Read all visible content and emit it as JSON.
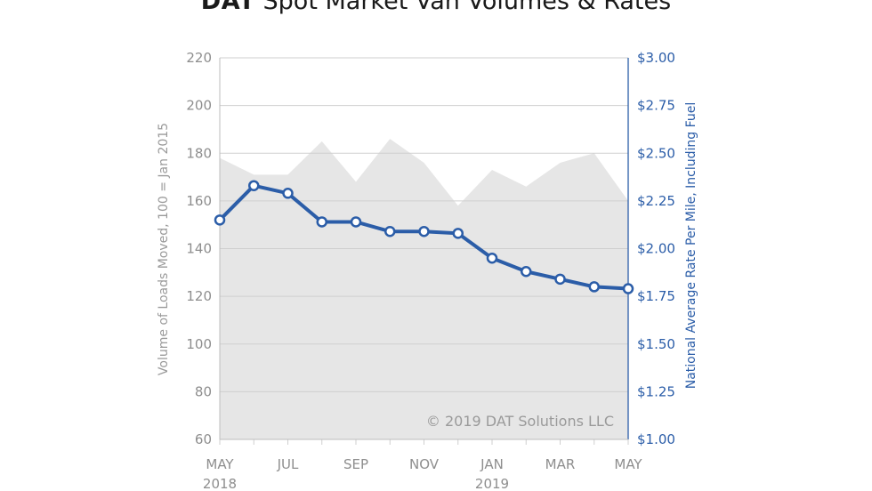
{
  "chart_data": {
    "type": "line",
    "title_brand": "DAT",
    "title_rest": " Spot Market Van Volumes & Rates",
    "x_tick_labels": [
      {
        "label": "MAY",
        "year": "2018",
        "index": 0
      },
      {
        "label": "JUL",
        "year": "",
        "index": 2
      },
      {
        "label": "SEP",
        "year": "",
        "index": 4
      },
      {
        "label": "NOV",
        "year": "",
        "index": 6
      },
      {
        "label": "JAN",
        "year": "2019",
        "index": 8
      },
      {
        "label": "MAR",
        "year": "",
        "index": 10
      },
      {
        "label": "MAY",
        "year": "",
        "index": 12
      }
    ],
    "series": [
      {
        "axis": "left",
        "kind": "area",
        "values": [
          178,
          171,
          171,
          185,
          168,
          186,
          176,
          158,
          173,
          166,
          176,
          180,
          160
        ]
      },
      {
        "axis": "right",
        "kind": "line",
        "values": [
          2.15,
          2.33,
          2.29,
          2.14,
          2.14,
          2.09,
          2.09,
          2.08,
          1.95,
          1.88,
          1.84,
          1.8,
          1.79
        ]
      }
    ],
    "y_left": {
      "label": "Volume of Loads Moved, 100 = Jan 2015",
      "min": 60,
      "max": 220,
      "ticks": [
        60,
        80,
        100,
        120,
        140,
        160,
        180,
        200,
        220
      ]
    },
    "y_right": {
      "label": "National Average Rate Per Mile, Including Fuel",
      "min": 1.0,
      "max": 3.0,
      "ticks": [
        "$1.00",
        "$1.25",
        "$1.50",
        "$1.75",
        "$2.00",
        "$2.25",
        "$2.50",
        "$2.75",
        "$3.00"
      ]
    },
    "grid": true,
    "copyright": "© 2019 DAT Solutions LLC",
    "colors": {
      "line": "#2b5da8",
      "area": "#e6e6e6",
      "grid": "#cfcfcf",
      "left_axis": "#8e8e8e",
      "right_axis": "#2b5da8"
    }
  }
}
